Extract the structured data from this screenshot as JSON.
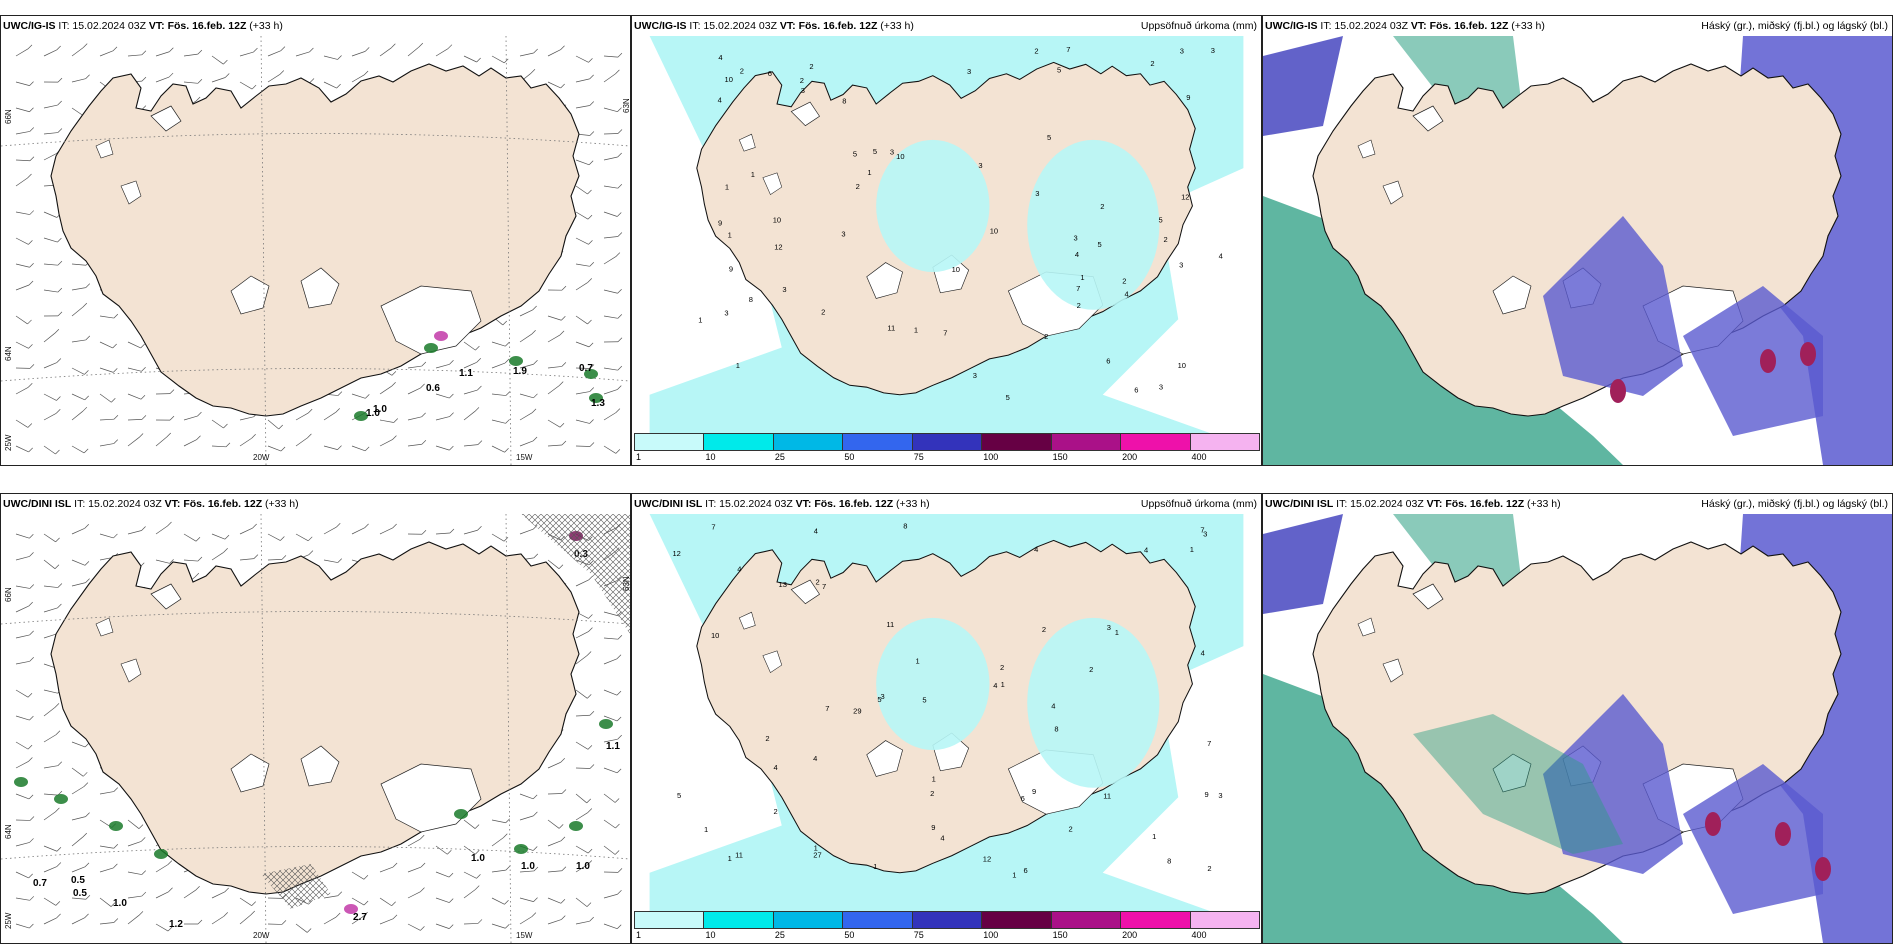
{
  "panels": [
    {
      "id": "top-left",
      "model": "UWC/IG-IS",
      "it": "IT: 15.02.2024 03Z",
      "vt_label": "VT: Fös. 16.feb. 12Z",
      "offset": "(+33 h)",
      "right_title": "",
      "type": "wind",
      "lon_labels": [
        "20W",
        "15W"
      ],
      "lat_labels": [
        "66N",
        "64N",
        "25W",
        "63N"
      ],
      "precip_values": [
        "0.6",
        "1.1",
        "1.0",
        "1.9",
        "0.7",
        "1.3",
        "1.0"
      ]
    },
    {
      "id": "top-middle",
      "model": "UWC/IG-IS",
      "it": "IT: 15.02.2024 03Z",
      "vt_label": "VT: Fös. 16.feb. 12Z",
      "offset": "(+33 h)",
      "right_title": "Uppsöfnuð úrkoma (mm)",
      "type": "precip",
      "station_values": [
        "4",
        "2",
        "1",
        "2",
        "10",
        "6",
        "3",
        "5",
        "5",
        "5",
        "4",
        "9",
        "10",
        "10",
        "11",
        "12",
        "10",
        "10",
        "3",
        "3",
        "3",
        "2",
        "2",
        "3",
        "2",
        "2",
        "1",
        "1",
        "3",
        "2",
        "3",
        "2",
        "1",
        "3",
        "5",
        "4",
        "7",
        "10",
        "7",
        "8",
        "9",
        "7",
        "3",
        "1",
        "2",
        "2",
        "1",
        "2",
        "3",
        "1",
        "4",
        "5",
        "3",
        "3",
        "2",
        "6",
        "5",
        "4",
        "12",
        "6",
        "5",
        "8",
        "3",
        "9",
        "3",
        "1"
      ]
    },
    {
      "id": "top-right",
      "model": "UWC/IG-IS",
      "it": "IT: 15.02.2024 03Z",
      "vt_label": "VT: Fös. 16.feb. 12Z",
      "offset": "(+33 h)",
      "right_title": "Háský (gr.), miðský (fj.bl.) og lágský (bl.)",
      "type": "clouds"
    },
    {
      "id": "bottom-left",
      "model": "UWC/DINI ISL",
      "it": "IT: 15.02.2024 03Z",
      "vt_label": "VT: Fös. 16.feb. 12Z",
      "offset": "(+33 h)",
      "right_title": "",
      "type": "wind",
      "lon_labels": [
        "20W",
        "15W"
      ],
      "lat_labels": [
        "66N",
        "64N",
        "25W",
        "63N"
      ],
      "precip_values": [
        "0.3",
        "0.7",
        "0.5",
        "0.5",
        "1.0",
        "1.2",
        "2.7",
        "1.0",
        "1.0",
        "1.0",
        "1.1"
      ]
    },
    {
      "id": "bottom-middle",
      "model": "UWC/DINI ISL",
      "it": "IT: 15.02.2024 03Z",
      "vt_label": "VT: Fös. 16.feb. 12Z",
      "offset": "(+33 h)",
      "right_title": "Uppsöfnuð úrkoma (mm)",
      "type": "precip",
      "station_values": [
        "1",
        "1",
        "1",
        "2",
        "4",
        "4",
        "7",
        "8",
        "8",
        "11",
        "4",
        "4",
        "3",
        "2",
        "4",
        "4",
        "10",
        "27",
        "29",
        "12",
        "6",
        "3",
        "2",
        "1",
        "1",
        "2",
        "5",
        "4",
        "7",
        "8",
        "5",
        "6",
        "1",
        "1",
        "2",
        "4",
        "9",
        "1",
        "2",
        "1",
        "1",
        "2",
        "3",
        "11",
        "7",
        "9",
        "7",
        "12",
        "13",
        "9",
        "7",
        "4",
        "2",
        "11",
        "4",
        "3",
        "5",
        "1",
        "2"
      ]
    },
    {
      "id": "bottom-right",
      "model": "UWC/DINI ISL",
      "it": "IT: 15.02.2024 03Z",
      "vt_label": "VT: Fös. 16.feb. 12Z",
      "offset": "(+33 h)",
      "right_title": "Háský (gr.), miðský (fj.bl.) og lágský (bl.)",
      "type": "clouds"
    }
  ],
  "colorbar": {
    "ticks": [
      "1",
      "10",
      "25",
      "50",
      "75",
      "100",
      "150",
      "200",
      "400"
    ],
    "colors": [
      "#c8fafa",
      "#00eaea",
      "#00b8e6",
      "#3366ee",
      "#3333bb",
      "#660044",
      "#aa1188",
      "#ee11aa",
      "#f5b3f0"
    ]
  },
  "palette": {
    "land": "#f3e3d3",
    "precip_light": "#b7f6f6",
    "high_cloud": "#2a9e82",
    "mid_cloud": "#5a5ad0",
    "low_cloud": "#3b3bbb",
    "heavy_precip": "#a0205a"
  }
}
